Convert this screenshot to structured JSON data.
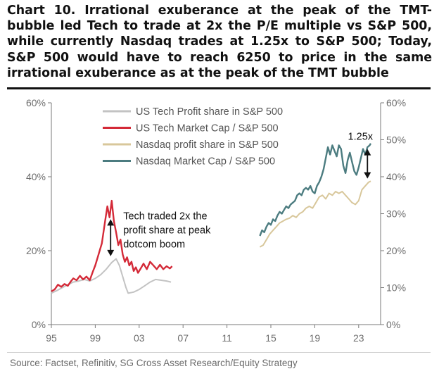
{
  "title": "Chart 10. Irrational exuberance at the peak of the TMT-bubble led Tech to trade at 2x the P/E multiple vs S&P 500, while currently Nasdaq trades at 1.25x to S&P 500; Today, S&P 500 would have to reach 6250 to price in the same irrational exuberance as at the peak of the TMT bubble",
  "source": "Source: Factset, Refinitiv, SG Cross Asset Research/Equity Strategy",
  "colors": {
    "us_tech_profit": "#c3c3c3",
    "us_tech_mcap": "#d42a38",
    "nasdaq_profit": "#d8c79b",
    "nasdaq_mcap": "#4c7c80",
    "axis": "#7a7a7a",
    "tick": "#6e6e6e"
  },
  "chart_data": {
    "type": "line",
    "x_ticks": [
      "95",
      "99",
      "03",
      "07",
      "11",
      "15",
      "19",
      "23"
    ],
    "left_axis": {
      "ticks": [
        "0%",
        "20%",
        "40%",
        "60%"
      ],
      "range": [
        0,
        60
      ]
    },
    "right_axis": {
      "ticks": [
        "0%",
        "10%",
        "20%",
        "30%",
        "40%",
        "50%",
        "60%"
      ],
      "range": [
        0,
        60
      ]
    },
    "series": [
      {
        "name": "US Tech Profit share in S&P 500",
        "axis": "left",
        "color_key": "us_tech_profit",
        "points": [
          [
            1995.0,
            8.5
          ],
          [
            1995.5,
            9.2
          ],
          [
            1996.0,
            10.0
          ],
          [
            1996.5,
            10.8
          ],
          [
            1997.0,
            11.5
          ],
          [
            1997.5,
            11.8
          ],
          [
            1998.0,
            12.2
          ],
          [
            1998.5,
            11.8
          ],
          [
            1999.0,
            12.5
          ],
          [
            1999.5,
            13.5
          ],
          [
            2000.0,
            15.0
          ],
          [
            2000.5,
            16.8
          ],
          [
            2000.9,
            17.8
          ],
          [
            2001.2,
            16.0
          ],
          [
            2001.5,
            13.0
          ],
          [
            2001.8,
            10.0
          ],
          [
            2002.0,
            8.5
          ],
          [
            2002.5,
            8.8
          ],
          [
            2003.0,
            9.5
          ],
          [
            2003.5,
            10.5
          ],
          [
            2004.0,
            11.5
          ],
          [
            2004.5,
            12.2
          ],
          [
            2005.0,
            12.0
          ],
          [
            2005.5,
            11.8
          ],
          [
            2005.9,
            11.5
          ]
        ]
      },
      {
        "name": "US Tech Market Cap / S&P 500",
        "axis": "left",
        "color_key": "us_tech_mcap",
        "points": [
          [
            1995.0,
            9.0
          ],
          [
            1995.3,
            9.5
          ],
          [
            1995.6,
            10.8
          ],
          [
            1995.9,
            10.2
          ],
          [
            1996.2,
            11.0
          ],
          [
            1996.5,
            10.5
          ],
          [
            1996.8,
            11.8
          ],
          [
            1997.0,
            12.5
          ],
          [
            1997.3,
            12.0
          ],
          [
            1997.6,
            13.2
          ],
          [
            1997.9,
            12.2
          ],
          [
            1998.2,
            13.0
          ],
          [
            1998.5,
            12.0
          ],
          [
            1998.8,
            14.5
          ],
          [
            1999.0,
            16.0
          ],
          [
            1999.3,
            19.0
          ],
          [
            1999.6,
            22.0
          ],
          [
            1999.9,
            28.0
          ],
          [
            2000.1,
            32.0
          ],
          [
            2000.3,
            29.0
          ],
          [
            2000.5,
            33.5
          ],
          [
            2000.7,
            28.0
          ],
          [
            2000.9,
            25.0
          ],
          [
            2001.1,
            21.5
          ],
          [
            2001.3,
            23.0
          ],
          [
            2001.5,
            19.0
          ],
          [
            2001.7,
            17.0
          ],
          [
            2001.9,
            18.2
          ],
          [
            2002.1,
            16.0
          ],
          [
            2002.3,
            17.0
          ],
          [
            2002.5,
            14.5
          ],
          [
            2002.7,
            15.5
          ],
          [
            2002.9,
            14.0
          ],
          [
            2003.1,
            15.0
          ],
          [
            2003.4,
            16.5
          ],
          [
            2003.7,
            15.0
          ],
          [
            2004.0,
            17.0
          ],
          [
            2004.3,
            16.0
          ],
          [
            2004.6,
            15.0
          ],
          [
            2004.9,
            16.2
          ],
          [
            2005.2,
            15.0
          ],
          [
            2005.5,
            15.8
          ],
          [
            2005.8,
            15.2
          ],
          [
            2006.0,
            15.8
          ]
        ]
      },
      {
        "name": "Nasdaq profit share in S&P 500",
        "axis": "right",
        "color_key": "nasdaq_profit",
        "points": [
          [
            2014.0,
            21.0
          ],
          [
            2014.3,
            21.5
          ],
          [
            2014.6,
            23.0
          ],
          [
            2014.9,
            24.5
          ],
          [
            2015.2,
            25.5
          ],
          [
            2015.5,
            26.5
          ],
          [
            2015.8,
            27.5
          ],
          [
            2016.1,
            28.0
          ],
          [
            2016.4,
            28.5
          ],
          [
            2016.7,
            28.8
          ],
          [
            2017.0,
            29.5
          ],
          [
            2017.3,
            29.0
          ],
          [
            2017.6,
            30.0
          ],
          [
            2017.9,
            30.5
          ],
          [
            2018.2,
            31.5
          ],
          [
            2018.5,
            32.0
          ],
          [
            2018.8,
            31.5
          ],
          [
            2019.1,
            33.0
          ],
          [
            2019.4,
            34.5
          ],
          [
            2019.7,
            35.0
          ],
          [
            2020.0,
            34.0
          ],
          [
            2020.3,
            35.5
          ],
          [
            2020.6,
            35.0
          ],
          [
            2020.9,
            36.0
          ],
          [
            2021.2,
            35.5
          ],
          [
            2021.5,
            36.0
          ],
          [
            2021.8,
            35.0
          ],
          [
            2022.1,
            34.0
          ],
          [
            2022.4,
            33.0
          ],
          [
            2022.7,
            32.5
          ],
          [
            2023.0,
            33.5
          ],
          [
            2023.3,
            36.5
          ],
          [
            2023.6,
            37.5
          ],
          [
            2023.9,
            38.5
          ],
          [
            2024.1,
            38.8
          ]
        ]
      },
      {
        "name": "Nasdaq Market Cap / S&P 500",
        "axis": "right",
        "color_key": "nasdaq_mcap",
        "points": [
          [
            2014.0,
            24.0
          ],
          [
            2014.2,
            25.5
          ],
          [
            2014.4,
            25.0
          ],
          [
            2014.6,
            26.5
          ],
          [
            2014.8,
            27.5
          ],
          [
            2015.0,
            27.0
          ],
          [
            2015.2,
            28.5
          ],
          [
            2015.4,
            28.0
          ],
          [
            2015.6,
            29.5
          ],
          [
            2015.8,
            30.5
          ],
          [
            2016.0,
            30.0
          ],
          [
            2016.2,
            31.0
          ],
          [
            2016.4,
            32.0
          ],
          [
            2016.6,
            31.5
          ],
          [
            2016.8,
            32.5
          ],
          [
            2017.0,
            33.0
          ],
          [
            2017.2,
            33.5
          ],
          [
            2017.4,
            35.0
          ],
          [
            2017.6,
            35.5
          ],
          [
            2017.8,
            35.0
          ],
          [
            2018.0,
            36.5
          ],
          [
            2018.2,
            37.0
          ],
          [
            2018.4,
            36.5
          ],
          [
            2018.6,
            37.5
          ],
          [
            2018.8,
            36.0
          ],
          [
            2019.0,
            35.5
          ],
          [
            2019.2,
            37.5
          ],
          [
            2019.4,
            38.5
          ],
          [
            2019.6,
            40.0
          ],
          [
            2019.8,
            42.0
          ],
          [
            2020.0,
            45.0
          ],
          [
            2020.2,
            48.0
          ],
          [
            2020.4,
            46.0
          ],
          [
            2020.6,
            48.5
          ],
          [
            2020.8,
            47.0
          ],
          [
            2021.0,
            45.5
          ],
          [
            2021.2,
            48.5
          ],
          [
            2021.4,
            47.5
          ],
          [
            2021.6,
            43.0
          ],
          [
            2021.8,
            41.0
          ],
          [
            2022.0,
            44.5
          ],
          [
            2022.2,
            46.5
          ],
          [
            2022.4,
            44.0
          ],
          [
            2022.6,
            41.5
          ],
          [
            2022.8,
            40.5
          ],
          [
            2023.0,
            42.5
          ],
          [
            2023.2,
            45.0
          ],
          [
            2023.4,
            47.5
          ],
          [
            2023.6,
            46.0
          ],
          [
            2023.8,
            48.0
          ],
          [
            2024.0,
            48.5
          ],
          [
            2024.1,
            49.0
          ]
        ]
      }
    ],
    "annotations": [
      {
        "id": "tech_2x",
        "text_lines": [
          "Tech traded 2x the",
          "profit share at peak",
          "dotcom boom"
        ],
        "arrow_x": 2000.4,
        "arrow_from": 28.5,
        "arrow_to": 18.5,
        "axis": "left"
      },
      {
        "id": "nasdaq_125x",
        "text_lines": [
          "1.25x"
        ],
        "arrow_x": 2023.8,
        "arrow_from": 47.5,
        "arrow_to": 39.5,
        "axis": "right"
      }
    ]
  }
}
